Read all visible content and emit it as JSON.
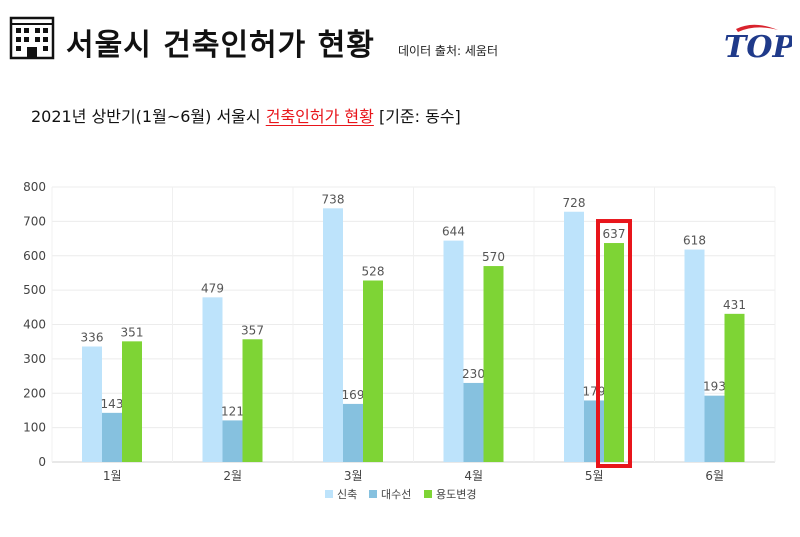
{
  "header": {
    "title": "서울시 건축인허가 현황",
    "source": "데이터 출처: 세움터",
    "logo_text": "TOP"
  },
  "subtitle": {
    "prefix": "2021년 상반기(1월~6월) 서울시 ",
    "highlight": "건축인허가 현황",
    "suffix": " [기준: 동수]"
  },
  "colors": {
    "신축": "#bde3fb",
    "대수선": "#86c1df",
    "용도변경": "#7ed435",
    "highlight_box": "#e8151b",
    "title_highlight": "#e8151b"
  },
  "chart_data": {
    "type": "bar",
    "categories": [
      "1월",
      "2월",
      "3월",
      "4월",
      "5월",
      "6월"
    ],
    "series": [
      {
        "name": "신축",
        "values": [
          336,
          479,
          738,
          644,
          728,
          618
        ]
      },
      {
        "name": "대수선",
        "values": [
          143,
          121,
          169,
          230,
          179,
          193
        ]
      },
      {
        "name": "용도변경",
        "values": [
          351,
          357,
          528,
          570,
          637,
          431
        ]
      }
    ],
    "yticks": [
      0,
      100,
      200,
      300,
      400,
      500,
      600,
      700,
      800
    ],
    "ylim": [
      0,
      800
    ],
    "grid": true,
    "legend": "bottom",
    "highlight": {
      "category": "5월",
      "series": "용도변경"
    }
  }
}
